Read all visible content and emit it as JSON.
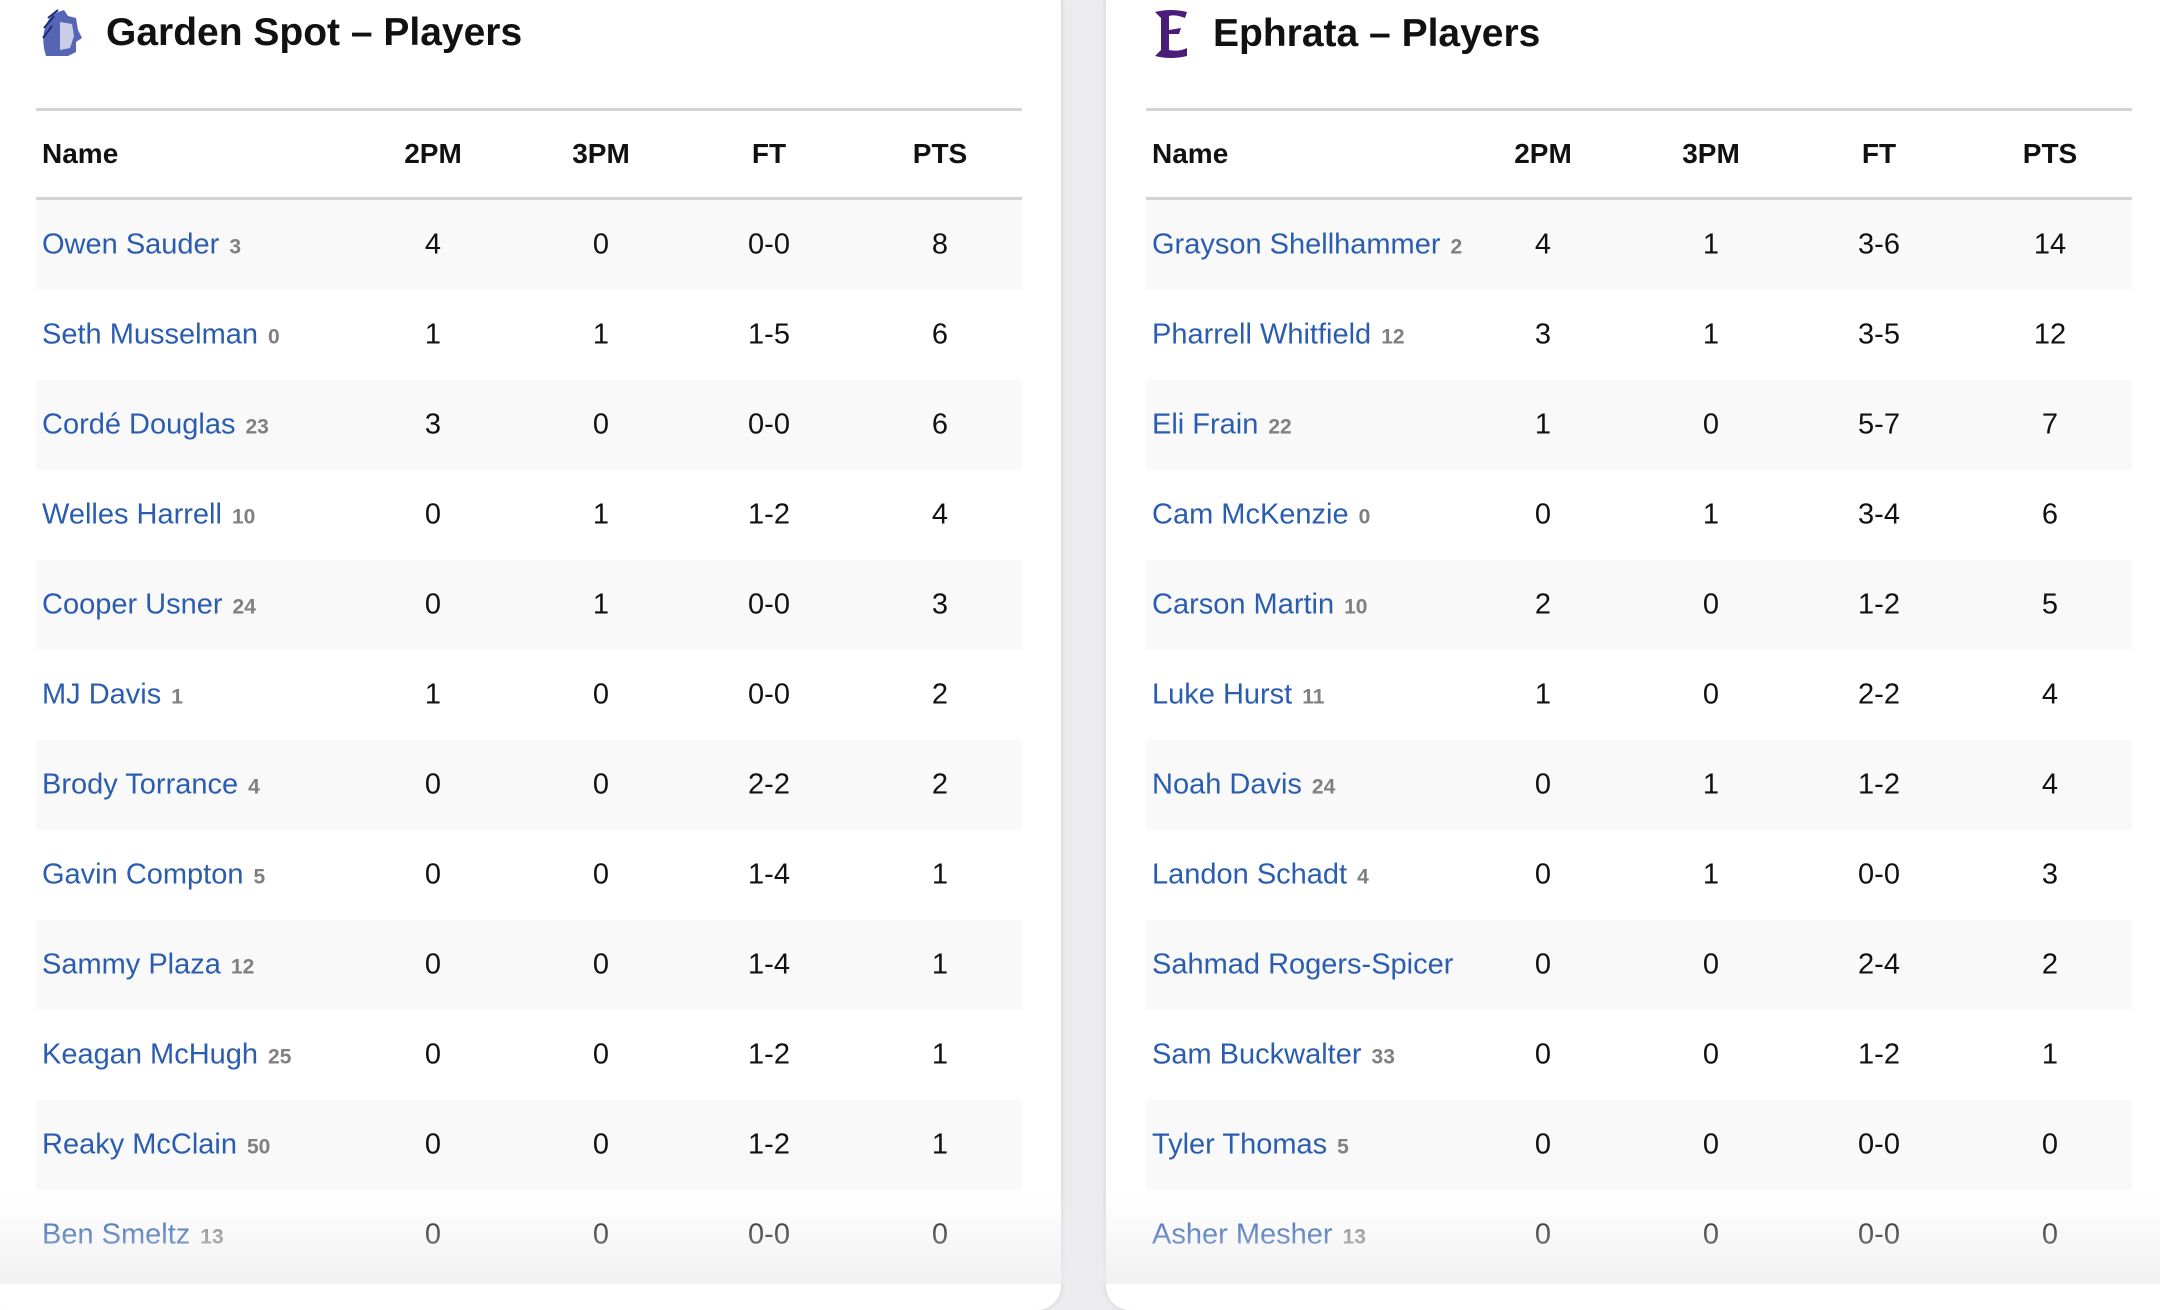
{
  "columns": [
    "Name",
    "2PM",
    "3PM",
    "FT",
    "PTS"
  ],
  "teams": [
    {
      "title": "Garden Spot – Players",
      "logo": "spartan-helmet-logo",
      "logo_color": "#3a4aa8",
      "players": [
        {
          "name": "Owen Sauder",
          "num": "3",
          "p2": "4",
          "p3": "0",
          "ft": "0-0",
          "pts": "8"
        },
        {
          "name": "Seth Musselman",
          "num": "0",
          "p2": "1",
          "p3": "1",
          "ft": "1-5",
          "pts": "6"
        },
        {
          "name": "Cordé Douglas",
          "num": "23",
          "p2": "3",
          "p3": "0",
          "ft": "0-0",
          "pts": "6"
        },
        {
          "name": "Welles Harrell",
          "num": "10",
          "p2": "0",
          "p3": "1",
          "ft": "1-2",
          "pts": "4"
        },
        {
          "name": "Cooper Usner",
          "num": "24",
          "p2": "0",
          "p3": "1",
          "ft": "0-0",
          "pts": "3"
        },
        {
          "name": "MJ Davis",
          "num": "1",
          "p2": "1",
          "p3": "0",
          "ft": "0-0",
          "pts": "2"
        },
        {
          "name": "Brody Torrance",
          "num": "4",
          "p2": "0",
          "p3": "0",
          "ft": "2-2",
          "pts": "2"
        },
        {
          "name": "Gavin Compton",
          "num": "5",
          "p2": "0",
          "p3": "0",
          "ft": "1-4",
          "pts": "1"
        },
        {
          "name": "Sammy Plaza",
          "num": "12",
          "p2": "0",
          "p3": "0",
          "ft": "1-4",
          "pts": "1"
        },
        {
          "name": "Keagan McHugh",
          "num": "25",
          "p2": "0",
          "p3": "0",
          "ft": "1-2",
          "pts": "1"
        },
        {
          "name": "Reaky McClain",
          "num": "50",
          "p2": "0",
          "p3": "0",
          "ft": "1-2",
          "pts": "1"
        },
        {
          "name": "Ben Smeltz",
          "num": "13",
          "p2": "0",
          "p3": "0",
          "ft": "0-0",
          "pts": "0"
        }
      ]
    },
    {
      "title": "Ephrata – Players",
      "logo": "gothic-e-logo",
      "logo_color": "#4b1d7a",
      "players": [
        {
          "name": "Grayson Shellhammer",
          "num": "2",
          "p2": "4",
          "p3": "1",
          "ft": "3-6",
          "pts": "14"
        },
        {
          "name": "Pharrell Whitfield",
          "num": "12",
          "p2": "3",
          "p3": "1",
          "ft": "3-5",
          "pts": "12"
        },
        {
          "name": "Eli Frain",
          "num": "22",
          "p2": "1",
          "p3": "0",
          "ft": "5-7",
          "pts": "7"
        },
        {
          "name": "Cam McKenzie",
          "num": "0",
          "p2": "0",
          "p3": "1",
          "ft": "3-4",
          "pts": "6"
        },
        {
          "name": "Carson Martin",
          "num": "10",
          "p2": "2",
          "p3": "0",
          "ft": "1-2",
          "pts": "5"
        },
        {
          "name": "Luke Hurst",
          "num": "11",
          "p2": "1",
          "p3": "0",
          "ft": "2-2",
          "pts": "4"
        },
        {
          "name": "Noah Davis",
          "num": "24",
          "p2": "0",
          "p3": "1",
          "ft": "1-2",
          "pts": "4"
        },
        {
          "name": "Landon Schadt",
          "num": "4",
          "p2": "0",
          "p3": "1",
          "ft": "0-0",
          "pts": "3"
        },
        {
          "name": "Sahmad Rogers-Spicer",
          "num": "",
          "p2": "0",
          "p3": "0",
          "ft": "2-4",
          "pts": "2"
        },
        {
          "name": "Sam Buckwalter",
          "num": "33",
          "p2": "0",
          "p3": "0",
          "ft": "1-2",
          "pts": "1"
        },
        {
          "name": "Tyler Thomas",
          "num": "5",
          "p2": "0",
          "p3": "0",
          "ft": "0-0",
          "pts": "0"
        },
        {
          "name": "Asher Mesher",
          "num": "13",
          "p2": "0",
          "p3": "0",
          "ft": "0-0",
          "pts": "0"
        }
      ]
    }
  ]
}
